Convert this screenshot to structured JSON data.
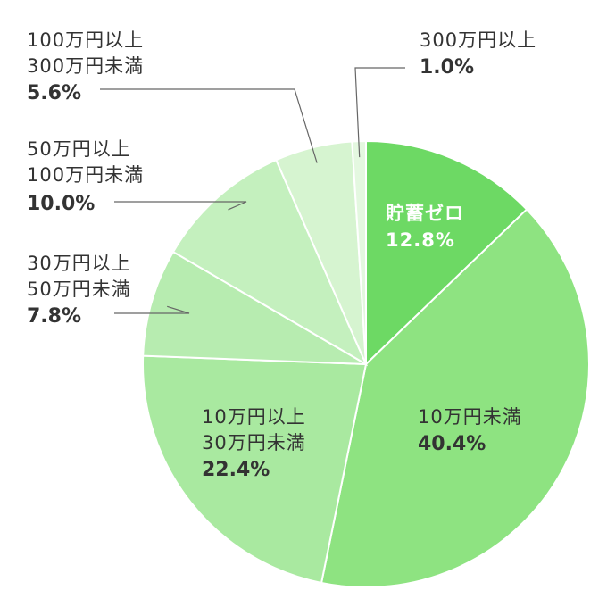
{
  "chart_data": {
    "type": "pie",
    "title": "",
    "slices": [
      {
        "label": "貯蓄ゼロ",
        "value": 12.8,
        "value_label": "12.8%",
        "color": "#6dd964"
      },
      {
        "label": "10万円未満",
        "value": 40.4,
        "value_label": "40.4%",
        "color": "#8ee381"
      },
      {
        "label": "10万円以上 30万円未満",
        "lines": [
          "10万円以上",
          "30万円未満"
        ],
        "value": 22.4,
        "value_label": "22.4%",
        "color": "#a9e9a0"
      },
      {
        "label": "30万円以上 50万円未満",
        "lines": [
          "30万円以上",
          "50万円未満"
        ],
        "value": 7.8,
        "value_label": "7.8%",
        "color": "#b7ecb0"
      },
      {
        "label": "50万円以上 100万円未満",
        "lines": [
          "50万円以上",
          "100万円未満"
        ],
        "value": 10.0,
        "value_label": "10.0%",
        "color": "#c4f0be"
      },
      {
        "label": "100万円以上 300万円未満",
        "lines": [
          "100万円以上",
          "300万円未満"
        ],
        "value": 5.6,
        "value_label": "5.6%",
        "color": "#d6f4d0"
      },
      {
        "label": "300万円以上",
        "value": 1.0,
        "value_label": "1.0%",
        "color": "#e4f8e0"
      }
    ]
  }
}
